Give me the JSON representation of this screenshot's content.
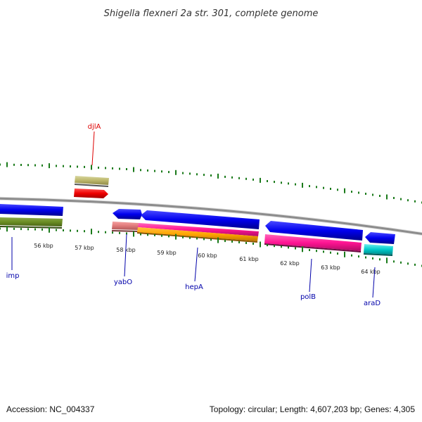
{
  "title": "Shigella flexneri 2a str. 301, complete genome",
  "footer": {
    "accession": "Accession: NC_004337",
    "summary": "Topology: circular; Length: 4,607,203 bp; Genes: 4,305"
  },
  "colors": {
    "backbone": "#8c8c8c",
    "tick": "#1a7a1a",
    "forward_cds": "#0000ee",
    "label_red": "#dd0000",
    "label_blue": "#0000aa"
  },
  "scale_labels": [
    "56 kbp",
    "57 kbp",
    "58 kbp",
    "59 kbp",
    "60 kbp",
    "61 kbp",
    "62 kbp",
    "63 kbp",
    "64 kbp"
  ],
  "gene_labels": [
    {
      "key": "djlA",
      "text": "djlA",
      "color": "#dd0000"
    },
    {
      "key": "imp",
      "text": "imp",
      "color": "#0000aa"
    },
    {
      "key": "yabO",
      "text": "yabO",
      "color": "#0000aa"
    },
    {
      "key": "hepA",
      "text": "hepA",
      "color": "#0000aa"
    },
    {
      "key": "polB",
      "text": "polB",
      "color": "#0000aa"
    },
    {
      "key": "araD",
      "text": "araD",
      "color": "#0000aa"
    }
  ]
}
